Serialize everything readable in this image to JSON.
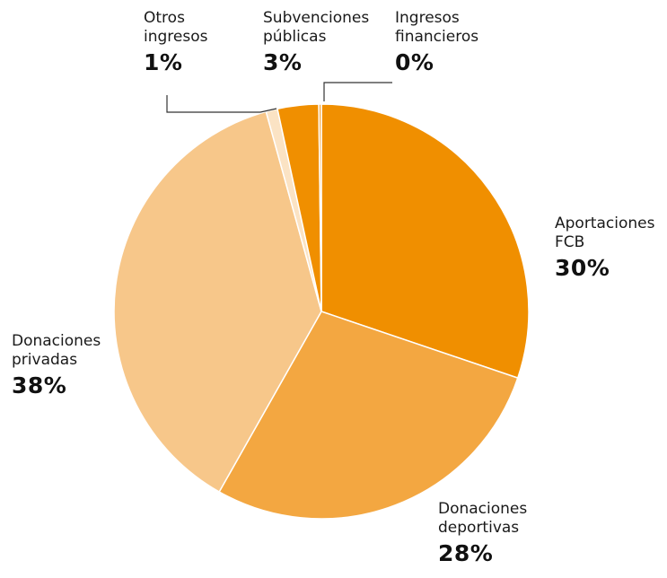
{
  "chart_data": {
    "type": "pie",
    "slices": [
      {
        "name": "Aportaciones FCB",
        "label_line1": "Aportaciones",
        "label_line2": "FCB",
        "percent_label": "30%",
        "value": 30.2,
        "color": "#f08f00"
      },
      {
        "name": "Donaciones deportivas",
        "label_line1": "Donaciones",
        "label_line2": "deportivas",
        "percent_label": "28%",
        "value": 28.0,
        "color": "#f3a741"
      },
      {
        "name": "Donaciones privadas",
        "label_line1": "Donaciones",
        "label_line2": "privadas",
        "percent_label": "38%",
        "value": 37.5,
        "color": "#f7c78a"
      },
      {
        "name": "Otros ingresos",
        "label_line1": "Otros",
        "label_line2": "ingresos",
        "percent_label": "1%",
        "value": 0.9,
        "color": "#fbe3c4"
      },
      {
        "name": "Subvenciones públicas",
        "label_line1": "Subvenciones",
        "label_line2": "públicas",
        "percent_label": "3%",
        "value": 3.2,
        "color": "#f08f00"
      },
      {
        "name": "Ingresos financieros",
        "label_line1": "Ingresos",
        "label_line2": "financieros",
        "percent_label": "0%",
        "value": 0.2,
        "color": "#f3a741"
      }
    ]
  }
}
